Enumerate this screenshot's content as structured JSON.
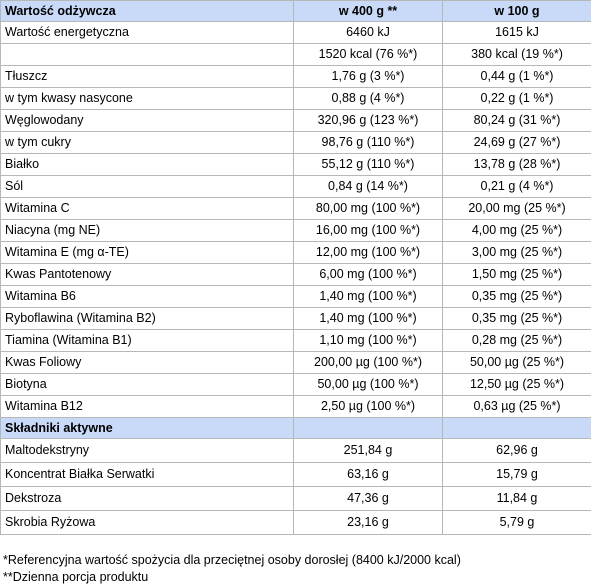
{
  "header": {
    "col1": "Wartość odżywcza",
    "col2": "w 400 g **",
    "col3": "w 100 g"
  },
  "nutrition_rows": [
    {
      "label": "Wartość energetyczna",
      "v400": "6460 kJ",
      "v100": "1615 kJ"
    },
    {
      "label": "",
      "v400": "1520 kcal (76 %*)",
      "v100": "380 kcal (19 %*)"
    },
    {
      "label": "Tłuszcz",
      "v400": "1,76 g (3 %*)",
      "v100": "0,44 g (1 %*)"
    },
    {
      "label": "w tym kwasy nasycone",
      "v400": "0,88 g (4 %*)",
      "v100": "0,22 g (1 %*)"
    },
    {
      "label": "Węglowodany",
      "v400": "320,96 g (123 %*)",
      "v100": "80,24 g (31 %*)"
    },
    {
      "label": "w tym cukry",
      "v400": "98,76 g (110 %*)",
      "v100": "24,69 g (27 %*)"
    },
    {
      "label": "Białko",
      "v400": "55,12 g (110 %*)",
      "v100": "13,78 g (28 %*)"
    },
    {
      "label": "Sól",
      "v400": "0,84 g (14 %*)",
      "v100": "0,21 g (4 %*)"
    },
    {
      "label": "Witamina C",
      "v400": "80,00 mg (100 %*)",
      "v100": "20,00 mg (25 %*)"
    },
    {
      "label": "Niacyna (mg NE)",
      "v400": "16,00 mg (100 %*)",
      "v100": "4,00 mg (25 %*)"
    },
    {
      "label": "Witamina E (mg α-TE)",
      "v400": "12,00 mg (100 %*)",
      "v100": "3,00 mg (25 %*)"
    },
    {
      "label": "Kwas Pantotenowy",
      "v400": "6,00 mg (100 %*)",
      "v100": "1,50 mg (25 %*)"
    },
    {
      "label": "Witamina B6",
      "v400": "1,40 mg (100 %*)",
      "v100": "0,35 mg (25 %*)"
    },
    {
      "label": "Ryboflawina (Witamina B2)",
      "v400": "1,40 mg (100 %*)",
      "v100": "0,35 mg (25 %*)"
    },
    {
      "label": "Tiamina (Witamina B1)",
      "v400": "1,10 mg (100 %*)",
      "v100": "0,28 mg (25 %*)"
    },
    {
      "label": "Kwas Foliowy",
      "v400": "200,00 µg (100 %*)",
      "v100": "50,00 µg (25 %*)"
    },
    {
      "label": "Biotyna",
      "v400": "50,00 µg (100 %*)",
      "v100": "12,50 µg (25 %*)"
    },
    {
      "label": "Witamina B12",
      "v400": "2,50 µg (100 %*)",
      "v100": "0,63 µg (25 %*)"
    }
  ],
  "active_header": "Składniki aktywne",
  "active_rows": [
    {
      "label": "Maltodekstryny",
      "v400": "251,84 g",
      "v100": "62,96 g"
    },
    {
      "label": "Koncentrat Białka Serwatki",
      "v400": "63,16 g",
      "v100": "15,79 g"
    },
    {
      "label": "Dekstroza",
      "v400": "47,36 g",
      "v100": "11,84 g"
    },
    {
      "label": "Skrobia Ryżowa",
      "v400": "23,16 g",
      "v100": "5,79 g"
    }
  ],
  "notes": [
    "*Referencyjna wartość spożycia dla przeciętnej osoby dorosłej (8400 kJ/2000 kcal)",
    "**Dzienna porcja produktu"
  ]
}
